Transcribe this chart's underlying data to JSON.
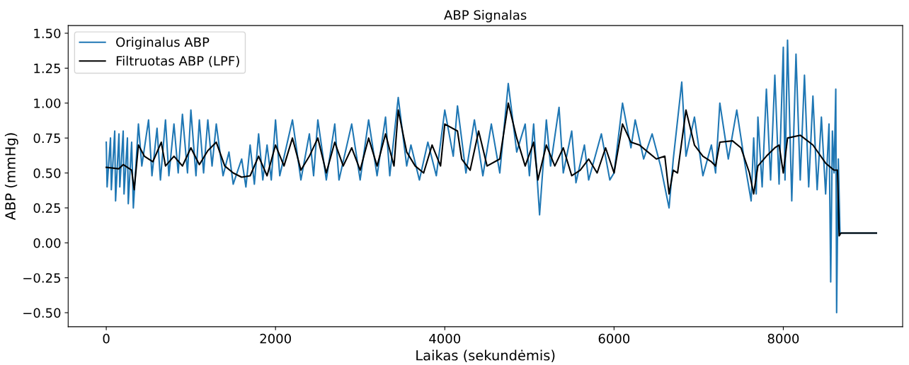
{
  "chart_data": {
    "type": "line",
    "title": "ABP Signalas",
    "xlabel": "Laikas (sekundėmis)",
    "ylabel": "ABP (mmHg)",
    "xlim": [
      -450,
      9410
    ],
    "ylim": [
      -0.6,
      1.555
    ],
    "xticks": [
      0,
      2000,
      4000,
      6000,
      8000
    ],
    "yticks": [
      {
        "value": -0.5,
        "label": "−0.50"
      },
      {
        "value": -0.25,
        "label": "−0.25"
      },
      {
        "value": 0,
        "label": "0.00"
      },
      {
        "value": 0.25,
        "label": "0.25"
      },
      {
        "value": 0.5,
        "label": "0.50"
      },
      {
        "value": 0.75,
        "label": "0.75"
      },
      {
        "value": 1.0,
        "label": "1.00"
      },
      {
        "value": 1.25,
        "label": "1.25"
      },
      {
        "value": 1.5,
        "label": "1.50"
      }
    ],
    "grid": false,
    "legend": "top left",
    "line_style": "solid",
    "marker": "none",
    "series": [
      {
        "name": "Originalus ABP",
        "color": "#1f77b4",
        "x": [
          0,
          10,
          50,
          60,
          100,
          110,
          150,
          160,
          200,
          210,
          250,
          260,
          300,
          320,
          380,
          420,
          500,
          540,
          600,
          640,
          700,
          740,
          800,
          850,
          900,
          960,
          1000,
          1060,
          1100,
          1150,
          1200,
          1250,
          1300,
          1380,
          1450,
          1500,
          1600,
          1650,
          1700,
          1750,
          1800,
          1850,
          1900,
          1950,
          2000,
          2050,
          2200,
          2300,
          2400,
          2450,
          2500,
          2600,
          2700,
          2750,
          2900,
          3000,
          3100,
          3200,
          3300,
          3350,
          3450,
          3550,
          3600,
          3700,
          3800,
          3900,
          4000,
          4100,
          4150,
          4250,
          4350,
          4450,
          4550,
          4650,
          4750,
          4850,
          4950,
          5000,
          5050,
          5120,
          5200,
          5250,
          5350,
          5400,
          5500,
          5550,
          5650,
          5700,
          5850,
          5950,
          6000,
          6100,
          6200,
          6250,
          6350,
          6450,
          6550,
          6650,
          6700,
          6800,
          6850,
          6950,
          7050,
          7150,
          7200,
          7250,
          7350,
          7450,
          7550,
          7620,
          7650,
          7680,
          7700,
          7750,
          7800,
          7850,
          7900,
          7950,
          8000,
          8020,
          8050,
          8100,
          8150,
          8200,
          8250,
          8300,
          8350,
          8400,
          8450,
          8500,
          8540,
          8560,
          8580,
          8600,
          8620,
          8630,
          8650,
          8670,
          9100
        ],
        "values": [
          0.72,
          0.4,
          0.75,
          0.38,
          0.8,
          0.3,
          0.78,
          0.4,
          0.8,
          0.35,
          0.75,
          0.28,
          0.72,
          0.25,
          0.85,
          0.55,
          0.88,
          0.48,
          0.82,
          0.45,
          0.88,
          0.48,
          0.85,
          0.5,
          0.92,
          0.5,
          0.95,
          0.48,
          0.88,
          0.5,
          0.88,
          0.55,
          0.85,
          0.48,
          0.65,
          0.42,
          0.6,
          0.4,
          0.7,
          0.42,
          0.78,
          0.45,
          0.7,
          0.45,
          0.88,
          0.48,
          0.88,
          0.45,
          0.78,
          0.48,
          0.88,
          0.45,
          0.85,
          0.45,
          0.85,
          0.45,
          0.88,
          0.48,
          0.9,
          0.48,
          1.04,
          0.55,
          0.7,
          0.45,
          0.72,
          0.48,
          0.95,
          0.62,
          0.98,
          0.5,
          0.88,
          0.48,
          0.85,
          0.5,
          1.14,
          0.65,
          0.85,
          0.48,
          0.85,
          0.2,
          0.88,
          0.55,
          0.97,
          0.5,
          0.8,
          0.43,
          0.7,
          0.45,
          0.78,
          0.45,
          0.5,
          1.0,
          0.68,
          0.88,
          0.6,
          0.78,
          0.55,
          0.25,
          0.6,
          1.15,
          0.62,
          0.9,
          0.48,
          0.7,
          0.5,
          1.0,
          0.6,
          0.95,
          0.55,
          0.3,
          0.75,
          0.35,
          0.9,
          0.4,
          1.1,
          0.45,
          1.2,
          0.42,
          1.4,
          0.45,
          1.45,
          0.3,
          1.35,
          0.45,
          1.2,
          0.4,
          1.05,
          0.38,
          0.9,
          0.35,
          0.85,
          -0.28,
          0.8,
          0.5,
          1.1,
          -0.5,
          0.6,
          0.07,
          0.07
        ]
      },
      {
        "name": "Filtruotas ABP (LPF)",
        "color": "#000000",
        "x": [
          0,
          150,
          200,
          300,
          330,
          380,
          450,
          550,
          650,
          700,
          800,
          900,
          1000,
          1100,
          1200,
          1300,
          1400,
          1500,
          1600,
          1700,
          1800,
          1900,
          2000,
          2100,
          2200,
          2300,
          2400,
          2500,
          2600,
          2700,
          2800,
          2900,
          3000,
          3100,
          3200,
          3300,
          3400,
          3450,
          3550,
          3650,
          3750,
          3850,
          3950,
          4000,
          4150,
          4200,
          4300,
          4400,
          4500,
          4650,
          4750,
          4850,
          4950,
          5050,
          5100,
          5200,
          5300,
          5400,
          5500,
          5600,
          5700,
          5800,
          5900,
          6000,
          6100,
          6200,
          6300,
          6400,
          6500,
          6600,
          6650,
          6700,
          6750,
          6850,
          6950,
          7050,
          7150,
          7200,
          7250,
          7400,
          7500,
          7600,
          7650,
          7700,
          7800,
          7900,
          7950,
          8000,
          8050,
          8200,
          8350,
          8500,
          8600,
          8640,
          8660,
          8680,
          9100
        ],
        "values": [
          0.54,
          0.53,
          0.56,
          0.52,
          0.38,
          0.7,
          0.62,
          0.58,
          0.72,
          0.55,
          0.62,
          0.55,
          0.68,
          0.56,
          0.66,
          0.72,
          0.55,
          0.5,
          0.47,
          0.48,
          0.62,
          0.48,
          0.7,
          0.55,
          0.75,
          0.52,
          0.62,
          0.75,
          0.5,
          0.72,
          0.55,
          0.68,
          0.52,
          0.75,
          0.55,
          0.78,
          0.55,
          0.95,
          0.65,
          0.55,
          0.5,
          0.7,
          0.55,
          0.85,
          0.8,
          0.6,
          0.52,
          0.8,
          0.55,
          0.6,
          1.0,
          0.75,
          0.55,
          0.72,
          0.45,
          0.7,
          0.55,
          0.68,
          0.48,
          0.52,
          0.6,
          0.5,
          0.68,
          0.5,
          0.85,
          0.72,
          0.7,
          0.65,
          0.6,
          0.62,
          0.35,
          0.52,
          0.5,
          0.95,
          0.7,
          0.62,
          0.58,
          0.55,
          0.72,
          0.73,
          0.68,
          0.5,
          0.35,
          0.55,
          0.62,
          0.68,
          0.7,
          0.5,
          0.75,
          0.77,
          0.7,
          0.57,
          0.52,
          0.52,
          0.05,
          0.07,
          0.07
        ]
      }
    ]
  }
}
